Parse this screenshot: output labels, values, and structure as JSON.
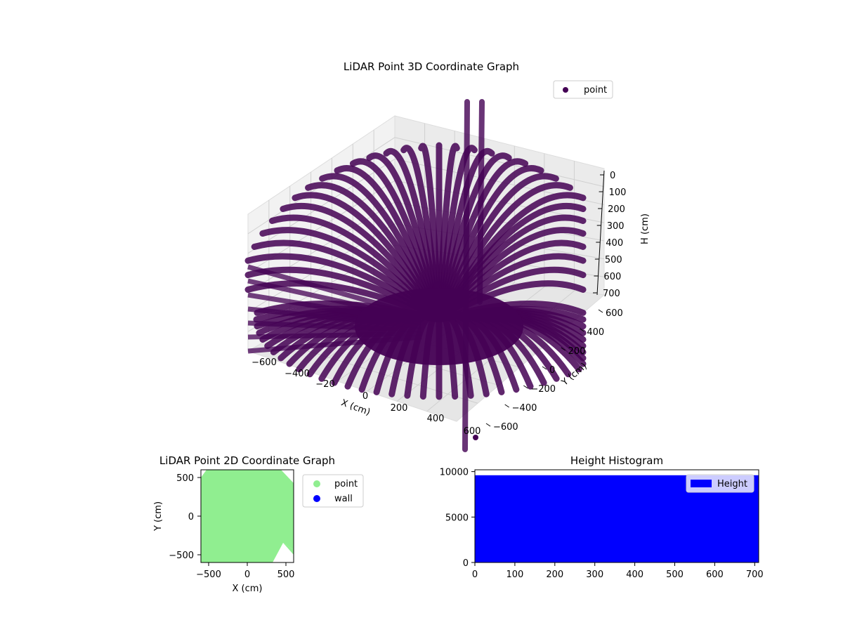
{
  "chart_data": [
    {
      "type": "scatter",
      "projection": "3d",
      "title": "LiDAR Point 3D Coordinate Graph",
      "xlabel": "X (cm)",
      "ylabel": "Y (cm)",
      "zlabel": "H (cm)",
      "xlim": [
        -700,
        700
      ],
      "ylim": [
        -700,
        700
      ],
      "zlim": [
        700,
        0
      ],
      "z_inverted": true,
      "x_ticks": [
        "−600",
        "−400",
        "−20",
        "0",
        "200",
        "400",
        "600"
      ],
      "y_ticks": [
        "600",
        "400",
        "200",
        "0",
        "−200",
        "−400",
        "−600"
      ],
      "z_ticks": [
        "0",
        "100",
        "200",
        "300",
        "400",
        "500",
        "600",
        "700"
      ],
      "legend": {
        "placement": "top-right",
        "entries": [
          {
            "label": "point",
            "color": "#440154"
          }
        ]
      },
      "series": [
        {
          "name": "point",
          "color": "#440154",
          "description_shape": "dome-of-scan-lines"
        }
      ],
      "grid": true
    },
    {
      "type": "scatter",
      "title": "LiDAR Point 2D Coordinate Graph",
      "xlabel": "X (cm)",
      "ylabel": "Y (cm)",
      "xlim": [
        -600,
        600
      ],
      "ylim": [
        -600,
        600
      ],
      "x_ticks": [
        "−500",
        "0",
        "500"
      ],
      "y_ticks": [
        "500",
        "0",
        "−500"
      ],
      "legend": {
        "placement": "outside-right",
        "entries": [
          {
            "label": "point",
            "color": "#90ee90"
          },
          {
            "label": "wall",
            "color": "#0000ff"
          }
        ]
      },
      "series": [
        {
          "name": "point",
          "color": "#90ee90"
        },
        {
          "name": "wall",
          "color": "#0000ff"
        }
      ]
    },
    {
      "type": "bar",
      "title": "Height Histogram",
      "xlim": [
        0,
        710
      ],
      "ylim": [
        0,
        10200
      ],
      "x_ticks": [
        "0",
        "100",
        "200",
        "300",
        "400",
        "500",
        "600",
        "700"
      ],
      "y_ticks": [
        "10000",
        "5000",
        "0"
      ],
      "bins": {
        "from": 0,
        "to": 710,
        "count_per_bin": 9600
      },
      "legend": {
        "placement": "top-right",
        "entries": [
          {
            "label": "Height",
            "color": "#0000ff"
          }
        ]
      },
      "series": [
        {
          "name": "Height",
          "color": "#0000ff"
        }
      ]
    }
  ]
}
